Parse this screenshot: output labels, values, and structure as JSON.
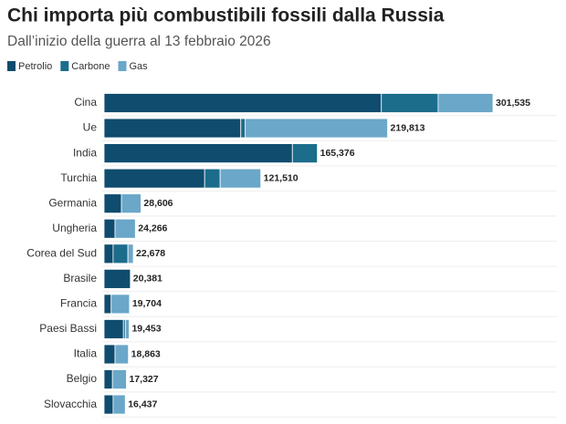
{
  "chart_data": {
    "type": "stacked-bar",
    "orientation": "horizontal",
    "title": "Chi importa più combustibili fossili dalla Russia",
    "subtitle": "Dall’inizio della guerra al 13 febbraio 2026",
    "categories": [
      "Cina",
      "Ue",
      "India",
      "Turchia",
      "Germania",
      "Ungheria",
      "Corea del Sud",
      "Brasile",
      "Francia",
      "Paesi Bassi",
      "Italia",
      "Belgio",
      "Slovacchia"
    ],
    "series": [
      {
        "name": "Petrolio",
        "color": "#0f4c6e",
        "values": [
          215000,
          106000,
          146000,
          78000,
          13500,
          8500,
          7000,
          20381,
          5500,
          15000,
          8500,
          6500,
          7000
        ]
      },
      {
        "name": "Carbone",
        "color": "#1c6c8c",
        "values": [
          44000,
          3500,
          19376,
          12000,
          0,
          0,
          11500,
          0,
          0,
          1500,
          0,
          0,
          0
        ]
      },
      {
        "name": "Gas",
        "color": "#6aa7c9",
        "values": [
          42535,
          110313,
          0,
          31510,
          15106,
          15766,
          4178,
          0,
          14204,
          2953,
          10363,
          10827,
          9437
        ]
      }
    ],
    "totals": [
      301535,
      219813,
      165376,
      121510,
      28606,
      24266,
      22678,
      20381,
      19704,
      19453,
      18863,
      17327,
      16437
    ],
    "total_labels": [
      "301,535",
      "219,813",
      "165,376",
      "121,510",
      "28,606",
      "24,266",
      "22,678",
      "20,381",
      "19,704",
      "19,453",
      "18,863",
      "17,327",
      "16,437"
    ],
    "legend": "top-left"
  }
}
